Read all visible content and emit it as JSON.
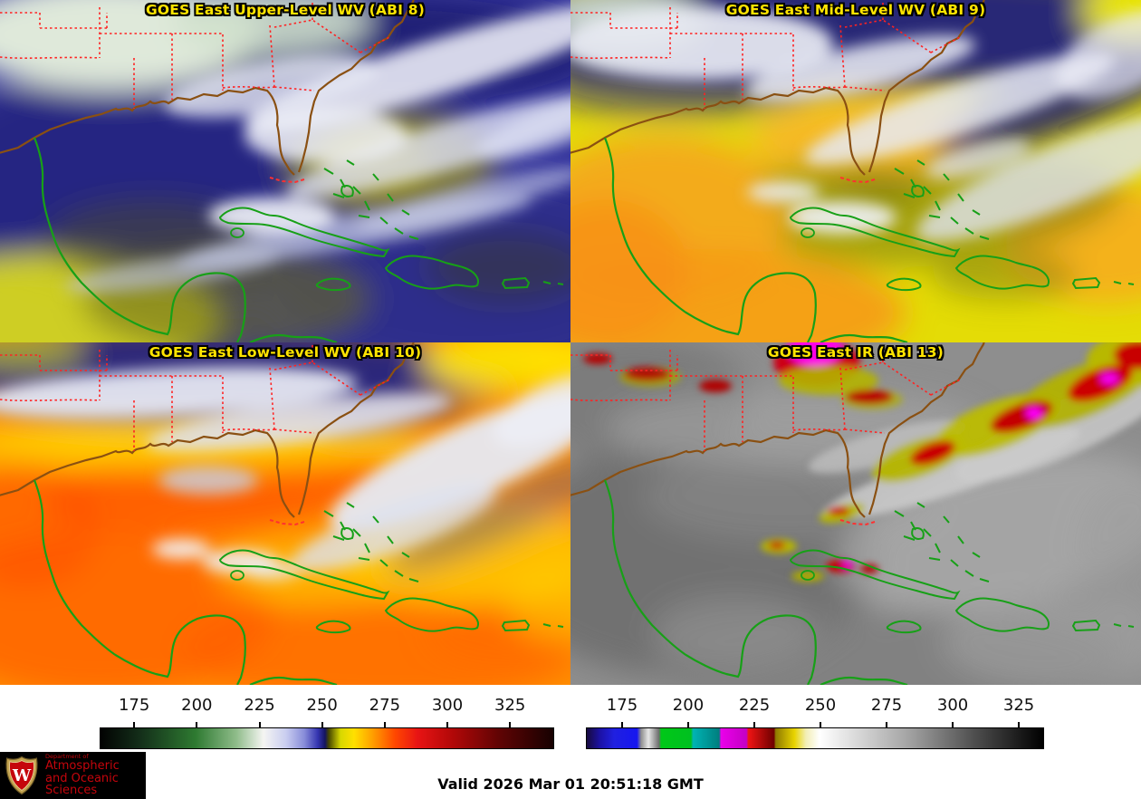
{
  "panels": [
    {
      "id": "abi8",
      "title": "GOES East Upper-Level WV (ABI 8)"
    },
    {
      "id": "abi9",
      "title": "GOES East Mid-Level WV (ABI 9)"
    },
    {
      "id": "abi10",
      "title": "GOES East Low-Level WV (ABI 10)"
    },
    {
      "id": "abi13",
      "title": "GOES East IR (ABI 13)"
    }
  ],
  "colorbars": {
    "left": {
      "tick_labels": [
        "175",
        "200",
        "225",
        "250",
        "275",
        "300",
        "325"
      ],
      "stops": [
        [
          0,
          "#020202"
        ],
        [
          9,
          "#14301a"
        ],
        [
          21,
          "#2e7a31"
        ],
        [
          30,
          "#8fbc8a"
        ],
        [
          36,
          "#f5f5f2"
        ],
        [
          41,
          "#c9cdf0"
        ],
        [
          45,
          "#888dd9"
        ],
        [
          48,
          "#3434b0"
        ],
        [
          49.6,
          "#14145e"
        ],
        [
          50.4,
          "#454500"
        ],
        [
          53,
          "#d8d800"
        ],
        [
          56,
          "#ffe000"
        ],
        [
          60,
          "#ffa000"
        ],
        [
          65,
          "#ff4800"
        ],
        [
          70,
          "#e81414"
        ],
        [
          78,
          "#b00808"
        ],
        [
          88,
          "#600404"
        ],
        [
          100,
          "#170101"
        ]
      ]
    },
    "right": {
      "tick_labels": [
        "175",
        "200",
        "225",
        "250",
        "275",
        "300",
        "325"
      ],
      "stops": [
        [
          0,
          "#170a3e"
        ],
        [
          3,
          "#1c12a8"
        ],
        [
          6,
          "#2020e0"
        ],
        [
          11,
          "#1616f0"
        ],
        [
          11.9,
          "#909090"
        ],
        [
          13.5,
          "#e6e6e6"
        ],
        [
          15.8,
          "#6e6e6e"
        ],
        [
          16.3,
          "#00c818"
        ],
        [
          22.8,
          "#00c020"
        ],
        [
          23.3,
          "#00b4b4"
        ],
        [
          29,
          "#007e7e"
        ],
        [
          29.4,
          "#ea00ea"
        ],
        [
          35,
          "#c400c4"
        ],
        [
          35.4,
          "#f01414"
        ],
        [
          41,
          "#6e0000"
        ],
        [
          41.4,
          "#8f7a00"
        ],
        [
          45.5,
          "#e8d400"
        ],
        [
          48,
          "#f2eeb4"
        ],
        [
          51,
          "#ffffff"
        ],
        [
          70,
          "#a6a6a6"
        ],
        [
          85,
          "#4e4e4e"
        ],
        [
          100,
          "#000000"
        ]
      ]
    }
  },
  "footer": {
    "valid_text": "Valid 2026 Mar 01 20:51:18 GMT",
    "logo": {
      "dept": "Department of",
      "line1": "Atmospheric",
      "line2": "and Oceanic Sciences",
      "letter": "W"
    }
  },
  "colors": {
    "title_yellow": "#ffe400",
    "state_border_red": "#ff2222",
    "coast_brown": "#8a5012",
    "coast_green": "#17a017",
    "uw_red": "#c5050c"
  }
}
